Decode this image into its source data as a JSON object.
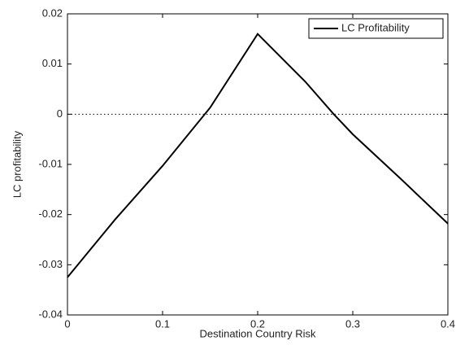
{
  "chart_data": {
    "type": "line",
    "xlabel": "Destination Country Risk",
    "ylabel": "LC profitability",
    "x": [
      0,
      0.05,
      0.1,
      0.15,
      0.2,
      0.25,
      0.28,
      0.3,
      0.35,
      0.4
    ],
    "series": [
      {
        "name": "LC Profitability",
        "color": "#000000",
        "values": [
          -0.0325,
          -0.021,
          -0.0103,
          0.0013,
          0.016,
          0.0065,
          0.0,
          -0.004,
          -0.0128,
          -0.0218
        ]
      }
    ],
    "xlim": [
      0,
      0.4
    ],
    "xticks": [
      0,
      0.1,
      0.2,
      0.3,
      0.4
    ],
    "ylim": [
      -0.04,
      0.02
    ],
    "yticks": [
      -0.04,
      -0.03,
      -0.02,
      -0.01,
      0,
      0.01,
      0.02
    ],
    "reference_line": 0,
    "legend": "northeast"
  }
}
